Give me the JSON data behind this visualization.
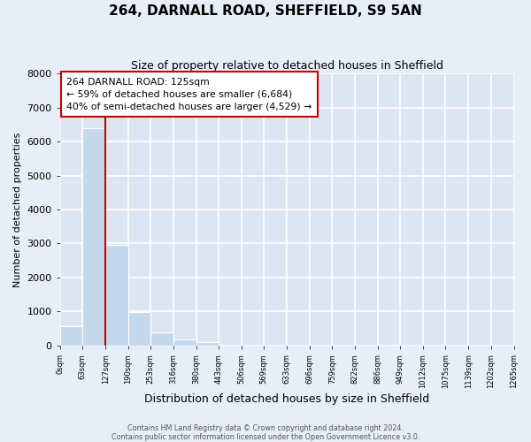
{
  "title": "264, DARNALL ROAD, SHEFFIELD, S9 5AN",
  "subtitle": "Size of property relative to detached houses in Sheffield",
  "xlabel": "Distribution of detached houses by size in Sheffield",
  "ylabel": "Number of detached properties",
  "bar_edges": [
    0,
    63,
    127,
    190,
    253,
    316,
    380,
    443,
    506,
    569,
    633,
    696,
    759,
    822,
    886,
    949,
    1012,
    1075,
    1139,
    1202,
    1265
  ],
  "bar_heights": [
    560,
    6400,
    2950,
    980,
    380,
    170,
    95,
    0,
    0,
    0,
    0,
    0,
    0,
    0,
    0,
    0,
    0,
    0,
    0,
    0
  ],
  "bar_color": "#c5d9ed",
  "property_line_x": 127,
  "property_line_color": "#cc0000",
  "annotation_text": "264 DARNALL ROAD: 125sqm\n← 59% of detached houses are smaller (6,684)\n40% of semi-detached houses are larger (4,529) →",
  "annotation_box_facecolor": "#ffffff",
  "annotation_box_edgecolor": "#cc0000",
  "ylim": [
    0,
    8000
  ],
  "yticks": [
    0,
    1000,
    2000,
    3000,
    4000,
    5000,
    6000,
    7000,
    8000
  ],
  "xtick_labels": [
    "0sqm",
    "63sqm",
    "127sqm",
    "190sqm",
    "253sqm",
    "316sqm",
    "380sqm",
    "443sqm",
    "506sqm",
    "569sqm",
    "633sqm",
    "696sqm",
    "759sqm",
    "822sqm",
    "886sqm",
    "949sqm",
    "1012sqm",
    "1075sqm",
    "1139sqm",
    "1202sqm",
    "1265sqm"
  ],
  "footer_line1": "Contains HM Land Registry data © Crown copyright and database right 2024.",
  "footer_line2": "Contains public sector information licensed under the Open Government Licence v3.0.",
  "bg_color": "#e8eef7",
  "plot_bg_color": "#dce6f2",
  "grid_color": "#ffffff",
  "title_fontsize": 11,
  "subtitle_fontsize": 9,
  "xlabel_fontsize": 9,
  "ylabel_fontsize": 8
}
